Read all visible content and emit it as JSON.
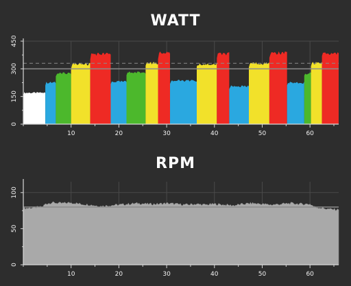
{
  "chart_data": [
    {
      "type": "area",
      "title": "WATT",
      "ylim": [
        0,
        450
      ],
      "xlim": [
        0,
        66
      ],
      "yticks": [
        0,
        150,
        300,
        450
      ],
      "xticks": [
        10,
        20,
        30,
        40,
        50,
        60
      ],
      "reference_lines": [
        {
          "value": 300,
          "style": "solid"
        },
        {
          "value": 330,
          "style": "dashed"
        }
      ],
      "zone_colors": {
        "white": "#ffffff",
        "blue": "#2aa8e0",
        "green": "#4cb82c",
        "yellow": "#f2e12a",
        "red": "#ee2a24"
      },
      "segments": [
        {
          "x0": 0.0,
          "x1": 4.6,
          "value": 170,
          "zone": "white"
        },
        {
          "x0": 4.6,
          "x1": 6.8,
          "value": 225,
          "zone": "blue"
        },
        {
          "x0": 6.8,
          "x1": 10.0,
          "value": 275,
          "zone": "green"
        },
        {
          "x0": 10.0,
          "x1": 14.0,
          "value": 325,
          "zone": "yellow"
        },
        {
          "x0": 14.0,
          "x1": 18.3,
          "value": 380,
          "zone": "red"
        },
        {
          "x0": 18.3,
          "x1": 21.6,
          "value": 230,
          "zone": "blue"
        },
        {
          "x0": 21.6,
          "x1": 25.6,
          "value": 280,
          "zone": "green"
        },
        {
          "x0": 25.6,
          "x1": 28.2,
          "value": 330,
          "zone": "yellow"
        },
        {
          "x0": 28.2,
          "x1": 30.7,
          "value": 385,
          "zone": "red"
        },
        {
          "x0": 30.7,
          "x1": 36.3,
          "value": 235,
          "zone": "blue"
        },
        {
          "x0": 36.3,
          "x1": 40.5,
          "value": 325,
          "zone": "yellow"
        },
        {
          "x0": 40.5,
          "x1": 43.1,
          "value": 380,
          "zone": "red"
        },
        {
          "x0": 43.1,
          "x1": 47.2,
          "value": 205,
          "zone": "blue"
        },
        {
          "x0": 47.2,
          "x1": 51.5,
          "value": 330,
          "zone": "yellow"
        },
        {
          "x0": 51.5,
          "x1": 55.2,
          "value": 385,
          "zone": "red"
        },
        {
          "x0": 55.2,
          "x1": 58.8,
          "value": 225,
          "zone": "blue"
        },
        {
          "x0": 58.8,
          "x1": 60.2,
          "value": 275,
          "zone": "green"
        },
        {
          "x0": 60.2,
          "x1": 62.5,
          "value": 330,
          "zone": "yellow"
        },
        {
          "x0": 62.5,
          "x1": 66.0,
          "value": 385,
          "zone": "red"
        }
      ]
    },
    {
      "type": "area",
      "title": "RPM",
      "ylim": [
        0,
        115
      ],
      "xlim": [
        0,
        66
      ],
      "yticks": [
        0,
        50,
        100
      ],
      "xticks": [
        10,
        20,
        30,
        40,
        50,
        60
      ],
      "reference_lines": [
        {
          "value": 80,
          "style": "solid"
        }
      ],
      "fill_color": "#a9a9a9",
      "points": [
        [
          0,
          78
        ],
        [
          2,
          79
        ],
        [
          4,
          80
        ],
        [
          4.6,
          84
        ],
        [
          6,
          86
        ],
        [
          8,
          85
        ],
        [
          10,
          86
        ],
        [
          12,
          84
        ],
        [
          14,
          83
        ],
        [
          16,
          81
        ],
        [
          18,
          82
        ],
        [
          20,
          83
        ],
        [
          22,
          84
        ],
        [
          24,
          85
        ],
        [
          26,
          84
        ],
        [
          28,
          84
        ],
        [
          30,
          85
        ],
        [
          32,
          84
        ],
        [
          34,
          83
        ],
        [
          36,
          84
        ],
        [
          38,
          83
        ],
        [
          40,
          84
        ],
        [
          42,
          83
        ],
        [
          44,
          82
        ],
        [
          46,
          84
        ],
        [
          48,
          85
        ],
        [
          50,
          84
        ],
        [
          52,
          83
        ],
        [
          54,
          84
        ],
        [
          56,
          85
        ],
        [
          58,
          84
        ],
        [
          60,
          84
        ],
        [
          61,
          80
        ],
        [
          62,
          79
        ],
        [
          64,
          77
        ],
        [
          66,
          76
        ]
      ]
    }
  ],
  "colors": {
    "background": "#2d2d2d",
    "grid": "#4a4a4a",
    "axis": "#d8d8d8",
    "reference_line": "#8c8c8c",
    "dashed_line": "#8c8c8c"
  }
}
